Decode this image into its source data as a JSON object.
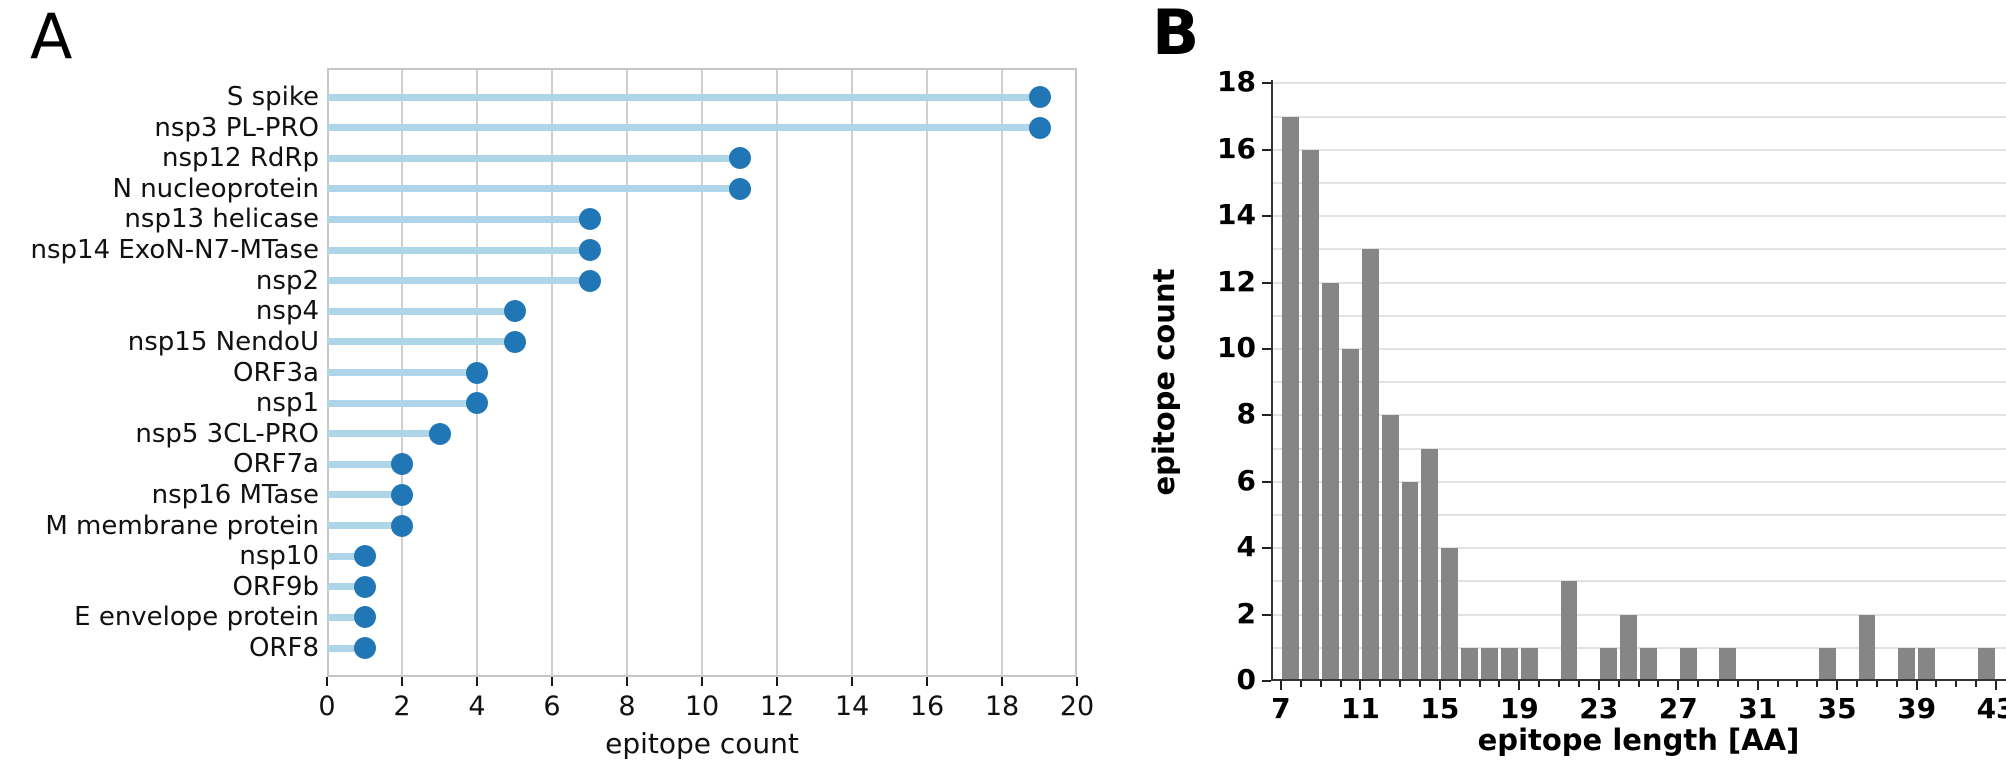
{
  "figure": {
    "background": "#ffffff",
    "panel_a_letter": "A",
    "panel_b_letter": "B"
  },
  "colors": {
    "lollipop_stem": "#aed6e8",
    "lollipop_dot": "#2176b5",
    "histogram_bar": "#868686",
    "grid_panel_a": "#cfcfcf",
    "grid_panel_b": "#e3e3e3",
    "spine_panel_a": "#c6c6c6",
    "spine_panel_b": "#333333"
  },
  "chart_data": [
    {
      "type": "scatter",
      "subtype": "lollipop-horizontal",
      "panel_label": "A",
      "title": "",
      "xlabel": "epitope count",
      "ylabel": "",
      "categories": [
        "S spike",
        "nsp3 PL-PRO",
        "nsp12 RdRp",
        "N nucleoprotein",
        "nsp13 helicase",
        "nsp14 ExoN-N7-MTase",
        "nsp2",
        "nsp4",
        "nsp15 NendoU",
        "ORF3a",
        "nsp1",
        "nsp5 3CL-PRO",
        "ORF7a",
        "nsp16 MTase",
        "M membrane protein",
        "nsp10",
        "ORF9b",
        "E envelope protein",
        "ORF8"
      ],
      "values": [
        19,
        19,
        11,
        11,
        7,
        7,
        7,
        5,
        5,
        4,
        4,
        3,
        2,
        2,
        2,
        1,
        1,
        1,
        1
      ],
      "xlim": [
        0,
        20
      ],
      "x_ticks": [
        0,
        2,
        4,
        6,
        8,
        10,
        12,
        14,
        16,
        18,
        20
      ],
      "grid": "vertical gridlines at each x tick, full box frame"
    },
    {
      "type": "bar",
      "subtype": "histogram",
      "panel_label": "B",
      "title": "",
      "xlabel": "epitope length [AA]",
      "ylabel": "epitope count",
      "bins": [
        7,
        8,
        9,
        10,
        11,
        12,
        13,
        14,
        15,
        16,
        17,
        18,
        19,
        20,
        21,
        22,
        23,
        24,
        25,
        26,
        27,
        28,
        29,
        30,
        31,
        32,
        33,
        34,
        35,
        36,
        37,
        38,
        39,
        40,
        41,
        42
      ],
      "counts": [
        17,
        16,
        12,
        10,
        13,
        8,
        6,
        7,
        4,
        1,
        1,
        1,
        1,
        0,
        3,
        0,
        1,
        2,
        1,
        0,
        1,
        0,
        1,
        0,
        0,
        0,
        0,
        1,
        0,
        2,
        0,
        1,
        1,
        0,
        0,
        1
      ],
      "x_tick_labels": [
        7,
        11,
        15,
        19,
        23,
        27,
        31,
        35,
        39,
        43
      ],
      "x_minor_ticks_every": 1,
      "y_ticks": [
        0,
        2,
        4,
        6,
        8,
        10,
        12,
        14,
        16,
        18
      ],
      "xlim": [
        6.5,
        43.5
      ],
      "ylim": [
        0,
        18
      ],
      "grid": "horizontal gridlines at every integer count",
      "legend": "none"
    }
  ]
}
